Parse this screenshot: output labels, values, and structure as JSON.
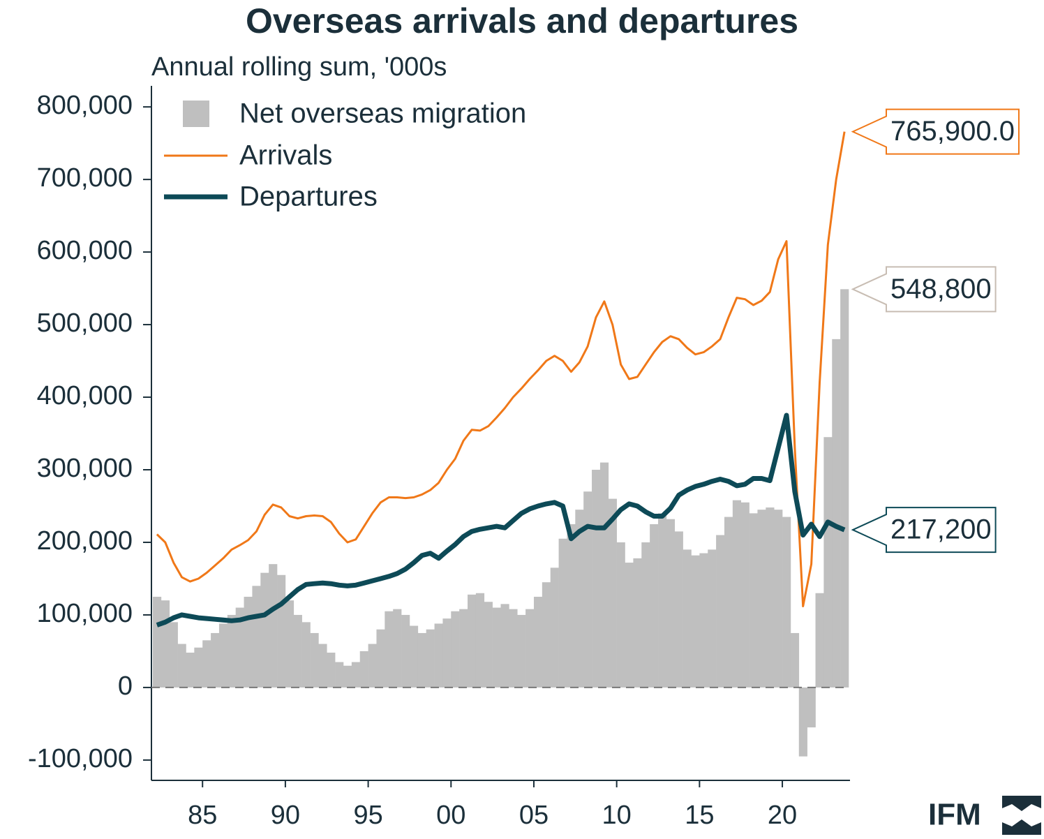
{
  "chart_data": {
    "type": "combo",
    "title": "Overseas arrivals and departures",
    "subtitle": "Annual rolling sum, '000s",
    "logo": "IFM",
    "legend": "top-left",
    "x": [
      1982.25,
      1982.75,
      1983.25,
      1983.75,
      1984.25,
      1984.75,
      1985.25,
      1985.75,
      1986.25,
      1986.75,
      1987.25,
      1987.75,
      1988.25,
      1988.75,
      1989.25,
      1989.75,
      1990.25,
      1990.75,
      1991.25,
      1991.75,
      1992.25,
      1992.75,
      1993.25,
      1993.75,
      1994.25,
      1994.75,
      1995.25,
      1995.75,
      1996.25,
      1996.75,
      1997.25,
      1997.75,
      1998.25,
      1998.75,
      1999.25,
      1999.75,
      2000.25,
      2000.75,
      2001.25,
      2001.75,
      2002.25,
      2002.75,
      2003.25,
      2003.75,
      2004.25,
      2004.75,
      2005.25,
      2005.75,
      2006.25,
      2006.75,
      2007.25,
      2007.75,
      2008.25,
      2008.75,
      2009.25,
      2009.75,
      2010.25,
      2010.75,
      2011.25,
      2011.75,
      2012.25,
      2012.75,
      2013.25,
      2013.75,
      2014.25,
      2014.75,
      2015.25,
      2015.75,
      2016.25,
      2016.75,
      2017.25,
      2017.75,
      2018.25,
      2018.75,
      2019.25,
      2019.75,
      2020.25,
      2020.75,
      2021.25,
      2021.75,
      2022.25,
      2022.75,
      2023.25,
      2023.75
    ],
    "series": [
      {
        "name": "Net overseas migration",
        "type": "bar",
        "color": "#bfbfbf",
        "label_color": "#c8bdb3",
        "end_label": "548,800",
        "values": [
          125000,
          120000,
          90000,
          60000,
          48000,
          55000,
          65000,
          75000,
          88000,
          100000,
          110000,
          125000,
          140000,
          158000,
          170000,
          155000,
          120000,
          100000,
          90000,
          75000,
          60000,
          48000,
          35000,
          30000,
          35000,
          50000,
          60000,
          80000,
          105000,
          108000,
          100000,
          85000,
          75000,
          80000,
          88000,
          95000,
          105000,
          108000,
          128000,
          130000,
          118000,
          110000,
          115000,
          108000,
          100000,
          108000,
          125000,
          145000,
          165000,
          205000,
          225000,
          245000,
          270000,
          300000,
          310000,
          260000,
          200000,
          172000,
          178000,
          200000,
          225000,
          240000,
          232000,
          215000,
          190000,
          182000,
          185000,
          190000,
          210000,
          235000,
          258000,
          255000,
          240000,
          245000,
          248000,
          245000,
          235000,
          75000,
          -95000,
          -55000,
          130000,
          345000,
          480000,
          548800
        ]
      },
      {
        "name": "Arrivals",
        "type": "line",
        "color": "#f07818",
        "label_color": "#f07818",
        "width": 3,
        "end_label": "765,900.0",
        "values": [
          211000,
          200000,
          172000,
          152000,
          146000,
          150000,
          158000,
          168000,
          178000,
          190000,
          196000,
          203000,
          215000,
          238000,
          252000,
          248000,
          236000,
          233000,
          236000,
          237000,
          236000,
          228000,
          212000,
          200000,
          204000,
          222000,
          240000,
          255000,
          262000,
          262000,
          261000,
          262000,
          266000,
          272000,
          282000,
          300000,
          315000,
          340000,
          355000,
          354000,
          360000,
          372000,
          385000,
          400000,
          412000,
          425000,
          437000,
          450000,
          457000,
          450000,
          435000,
          448000,
          470000,
          510000,
          532000,
          500000,
          445000,
          425000,
          428000,
          445000,
          462000,
          476000,
          484000,
          480000,
          468000,
          459000,
          462000,
          470000,
          480000,
          510000,
          537000,
          535000,
          527000,
          533000,
          545000,
          590000,
          615000,
          330000,
          112000,
          170000,
          420000,
          610000,
          700000,
          765900
        ]
      },
      {
        "name": "Departures",
        "type": "line",
        "color": "#0d4a57",
        "label_color": "#0d4a57",
        "width": 7,
        "end_label": "217,200",
        "values": [
          86000,
          90000,
          96000,
          100000,
          98000,
          96000,
          95000,
          94000,
          93000,
          92000,
          93000,
          96000,
          98000,
          100000,
          108000,
          115000,
          125000,
          135000,
          142000,
          143000,
          144000,
          143000,
          141000,
          140000,
          141000,
          144000,
          147000,
          150000,
          153000,
          157000,
          163000,
          172000,
          182000,
          185000,
          178000,
          188000,
          197000,
          208000,
          215000,
          218000,
          220000,
          222000,
          220000,
          230000,
          240000,
          246000,
          250000,
          253000,
          255000,
          250000,
          205000,
          215000,
          222000,
          220000,
          220000,
          232000,
          245000,
          253000,
          250000,
          242000,
          236000,
          236000,
          247000,
          265000,
          272000,
          277000,
          280000,
          284000,
          287000,
          284000,
          278000,
          280000,
          288000,
          288000,
          285000,
          330000,
          375000,
          270000,
          210000,
          225000,
          208000,
          228000,
          222000,
          217200
        ]
      }
    ],
    "xlim": [
      1982,
      2024
    ],
    "xticks": [
      {
        "value": 1985,
        "label": "85"
      },
      {
        "value": 1990,
        "label": "90"
      },
      {
        "value": 1995,
        "label": "95"
      },
      {
        "value": 2000,
        "label": "00"
      },
      {
        "value": 2005,
        "label": "05"
      },
      {
        "value": 2010,
        "label": "10"
      },
      {
        "value": 2015,
        "label": "15"
      },
      {
        "value": 2020,
        "label": "20"
      }
    ],
    "ylim": [
      -128000,
      829000
    ],
    "yticks": [
      {
        "value": -100000,
        "label": "-100,000"
      },
      0,
      {
        "value": 100000,
        "label": "100,000"
      },
      {
        "value": 200000,
        "label": "200,000"
      },
      {
        "value": 300000,
        "label": "300,000"
      },
      {
        "value": 400000,
        "label": "400,000"
      },
      {
        "value": 500000,
        "label": "500,000"
      },
      {
        "value": 600000,
        "label": "600,000"
      },
      {
        "value": 700000,
        "label": "700,000"
      },
      {
        "value": 800000,
        "label": "800,000"
      }
    ]
  }
}
